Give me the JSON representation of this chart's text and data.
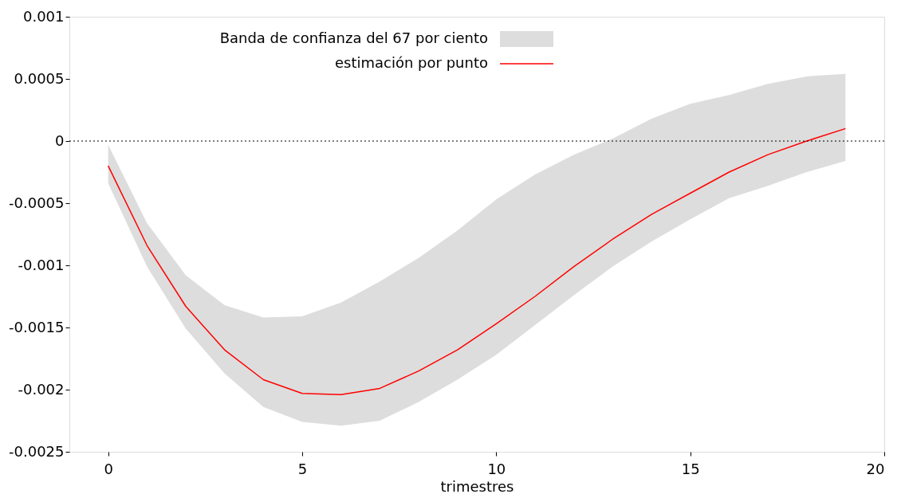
{
  "chart_data": {
    "type": "line",
    "xlabel": "trimestres",
    "x": [
      0,
      1,
      2,
      3,
      4,
      5,
      6,
      7,
      8,
      9,
      10,
      11,
      12,
      13,
      14,
      15,
      16,
      17,
      18,
      19
    ],
    "series": [
      {
        "name": "estimación por punto",
        "color": "#ff0000",
        "values": [
          -0.0002,
          -0.00084,
          -0.00133,
          -0.00168,
          -0.00192,
          -0.00203,
          -0.00204,
          -0.00199,
          -0.00185,
          -0.00168,
          -0.00147,
          -0.00125,
          -0.00101,
          -0.00079,
          -0.00059,
          -0.00042,
          -0.00025,
          -0.00011,
          0,
          0.0001
        ],
        "lower": [
          -0.00034,
          -0.00101,
          -0.00151,
          -0.00187,
          -0.00214,
          -0.00226,
          -0.00229,
          -0.00225,
          -0.0021,
          -0.00192,
          -0.00172,
          -0.00148,
          -0.00124,
          -0.00101,
          -0.00081,
          -0.00063,
          -0.00046,
          -0.00036,
          -0.00025,
          -0.00016
        ],
        "upper": [
          -3e-05,
          -0.00066,
          -0.00108,
          -0.00132,
          -0.00142,
          -0.00141,
          -0.0013,
          -0.00113,
          -0.00094,
          -0.00072,
          -0.00047,
          -0.00027,
          -0.00011,
          2e-05,
          0.00018,
          0.0003,
          0.00037,
          0.00046,
          0.00052,
          0.00054
        ]
      }
    ],
    "annotations": [
      "Banda de confianza del 67 por ciento"
    ],
    "xlim": [
      -1,
      20
    ],
    "xticks": [
      0,
      5,
      10,
      15,
      20
    ],
    "ylim": [
      -0.0025,
      0.001
    ],
    "yticks": [
      -0.0025,
      -0.002,
      -0.0015,
      -0.001,
      -0.0005,
      0,
      0.0005,
      0.001
    ],
    "ref_lines": [
      {
        "axis": "y",
        "value": 0,
        "color": "#000000",
        "line_style": "dotted"
      }
    ],
    "grid": false,
    "legend": "top",
    "marker": "none",
    "line_style": "solid"
  }
}
